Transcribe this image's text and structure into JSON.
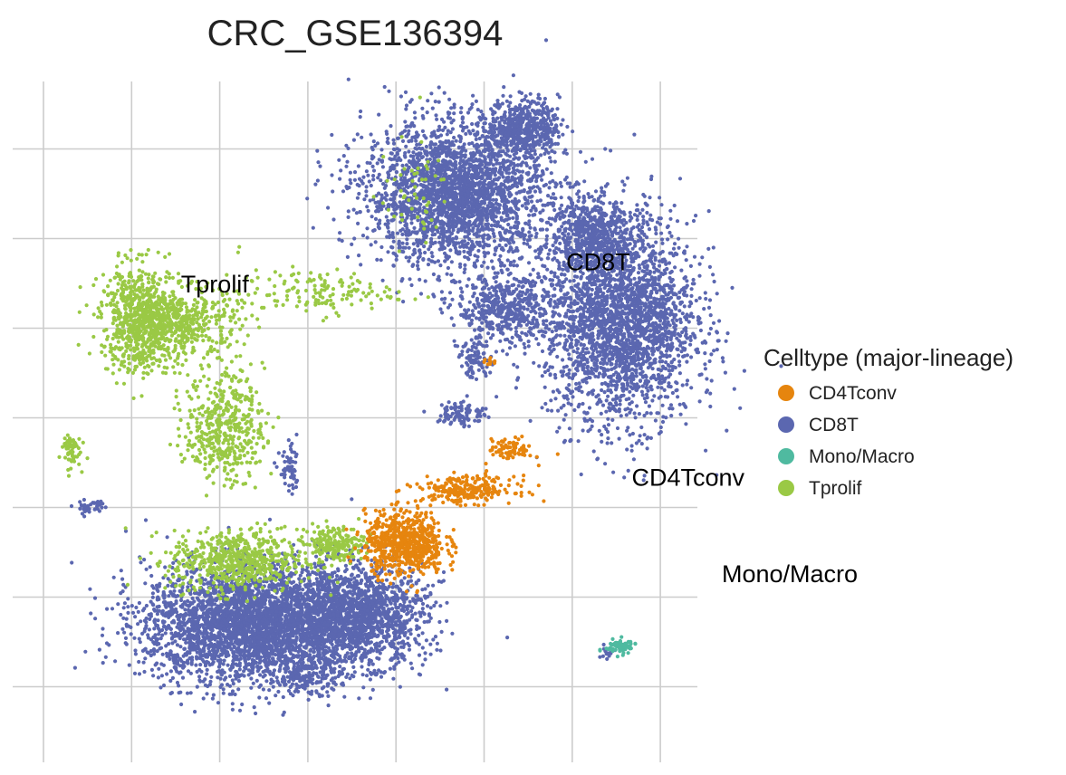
{
  "chart_data": {
    "type": "scatter",
    "title": "CRC_GSE136394",
    "xlabel": "",
    "ylabel": "",
    "grid": true,
    "legend": {
      "title": "Celltype (major-lineage)",
      "placement": "right",
      "entries": [
        {
          "name": "CD4Tconv",
          "color": "#E6850E"
        },
        {
          "name": "CD8T",
          "color": "#5B67B0"
        },
        {
          "name": "Mono/Macro",
          "color": "#4FBAA0"
        },
        {
          "name": "Tprolif",
          "color": "#9AC945"
        }
      ]
    },
    "cluster_labels": [
      {
        "text": "Tprolif",
        "x": 2.0,
        "y": 5.0
      },
      {
        "text": "CD8T",
        "x": 6.7,
        "y": 5.25
      },
      {
        "text": "CD4Tconv",
        "x": 7.5,
        "y": 2.8
      },
      {
        "text": "Mono/Macro",
        "x": 8.6,
        "y": 1.7
      }
    ],
    "xlim": [
      0,
      8
    ],
    "ylim": [
      0,
      7.5
    ],
    "series": [
      {
        "name": "CD8T",
        "regions": [
          {
            "cx": 4.7,
            "cy": 6.0,
            "rx": 1.05,
            "ry": 0.8,
            "n": 2600
          },
          {
            "cx": 5.45,
            "cy": 6.75,
            "rx": 0.4,
            "ry": 0.3,
            "n": 500
          },
          {
            "cx": 6.55,
            "cy": 4.6,
            "rx": 0.85,
            "ry": 1.15,
            "n": 2600
          },
          {
            "cx": 6.2,
            "cy": 5.55,
            "rx": 0.45,
            "ry": 0.4,
            "n": 500
          },
          {
            "cx": 5.25,
            "cy": 4.7,
            "rx": 0.55,
            "ry": 0.4,
            "n": 500
          },
          {
            "cx": 4.9,
            "cy": 4.15,
            "rx": 0.18,
            "ry": 0.2,
            "n": 80
          },
          {
            "cx": 4.75,
            "cy": 3.55,
            "rx": 0.28,
            "ry": 0.15,
            "n": 100
          },
          {
            "cx": 2.35,
            "cy": 1.2,
            "rx": 1.2,
            "ry": 0.65,
            "n": 3200
          },
          {
            "cx": 3.55,
            "cy": 1.3,
            "rx": 0.8,
            "ry": 0.55,
            "n": 1500
          },
          {
            "cx": 3.0,
            "cy": 0.6,
            "rx": 0.35,
            "ry": 0.2,
            "n": 150
          },
          {
            "cx": 2.8,
            "cy": 2.9,
            "rx": 0.12,
            "ry": 0.25,
            "n": 60
          },
          {
            "cx": 0.55,
            "cy": 2.5,
            "rx": 0.2,
            "ry": 0.1,
            "n": 40
          },
          {
            "cx": 6.4,
            "cy": 0.9,
            "rx": 0.08,
            "ry": 0.08,
            "n": 15
          }
        ]
      },
      {
        "name": "Tprolif",
        "regions": [
          {
            "cx": 1.1,
            "cy": 4.6,
            "rx": 0.45,
            "ry": 0.6,
            "n": 700
          },
          {
            "cx": 1.6,
            "cy": 4.55,
            "rx": 0.65,
            "ry": 0.4,
            "n": 450
          },
          {
            "cx": 2.05,
            "cy": 3.4,
            "rx": 0.45,
            "ry": 0.6,
            "n": 450
          },
          {
            "cx": 2.2,
            "cy": 1.9,
            "rx": 0.75,
            "ry": 0.35,
            "n": 600
          },
          {
            "cx": 3.3,
            "cy": 2.1,
            "rx": 0.35,
            "ry": 0.2,
            "n": 200
          },
          {
            "cx": 3.1,
            "cy": 4.9,
            "rx": 0.9,
            "ry": 0.25,
            "n": 140
          },
          {
            "cx": 0.3,
            "cy": 3.15,
            "rx": 0.12,
            "ry": 0.2,
            "n": 60
          },
          {
            "cx": 4.2,
            "cy": 6.0,
            "rx": 0.4,
            "ry": 0.6,
            "n": 50
          }
        ]
      },
      {
        "name": "CD4Tconv",
        "regions": [
          {
            "cx": 4.1,
            "cy": 2.1,
            "rx": 0.45,
            "ry": 0.35,
            "n": 700
          },
          {
            "cx": 4.8,
            "cy": 2.7,
            "rx": 0.55,
            "ry": 0.15,
            "n": 250
          },
          {
            "cx": 5.3,
            "cy": 3.15,
            "rx": 0.25,
            "ry": 0.12,
            "n": 80
          },
          {
            "cx": 5.1,
            "cy": 4.1,
            "rx": 0.08,
            "ry": 0.06,
            "n": 10
          }
        ]
      },
      {
        "name": "Mono/Macro",
        "regions": [
          {
            "cx": 6.55,
            "cy": 0.95,
            "rx": 0.17,
            "ry": 0.08,
            "n": 80
          }
        ]
      }
    ]
  }
}
